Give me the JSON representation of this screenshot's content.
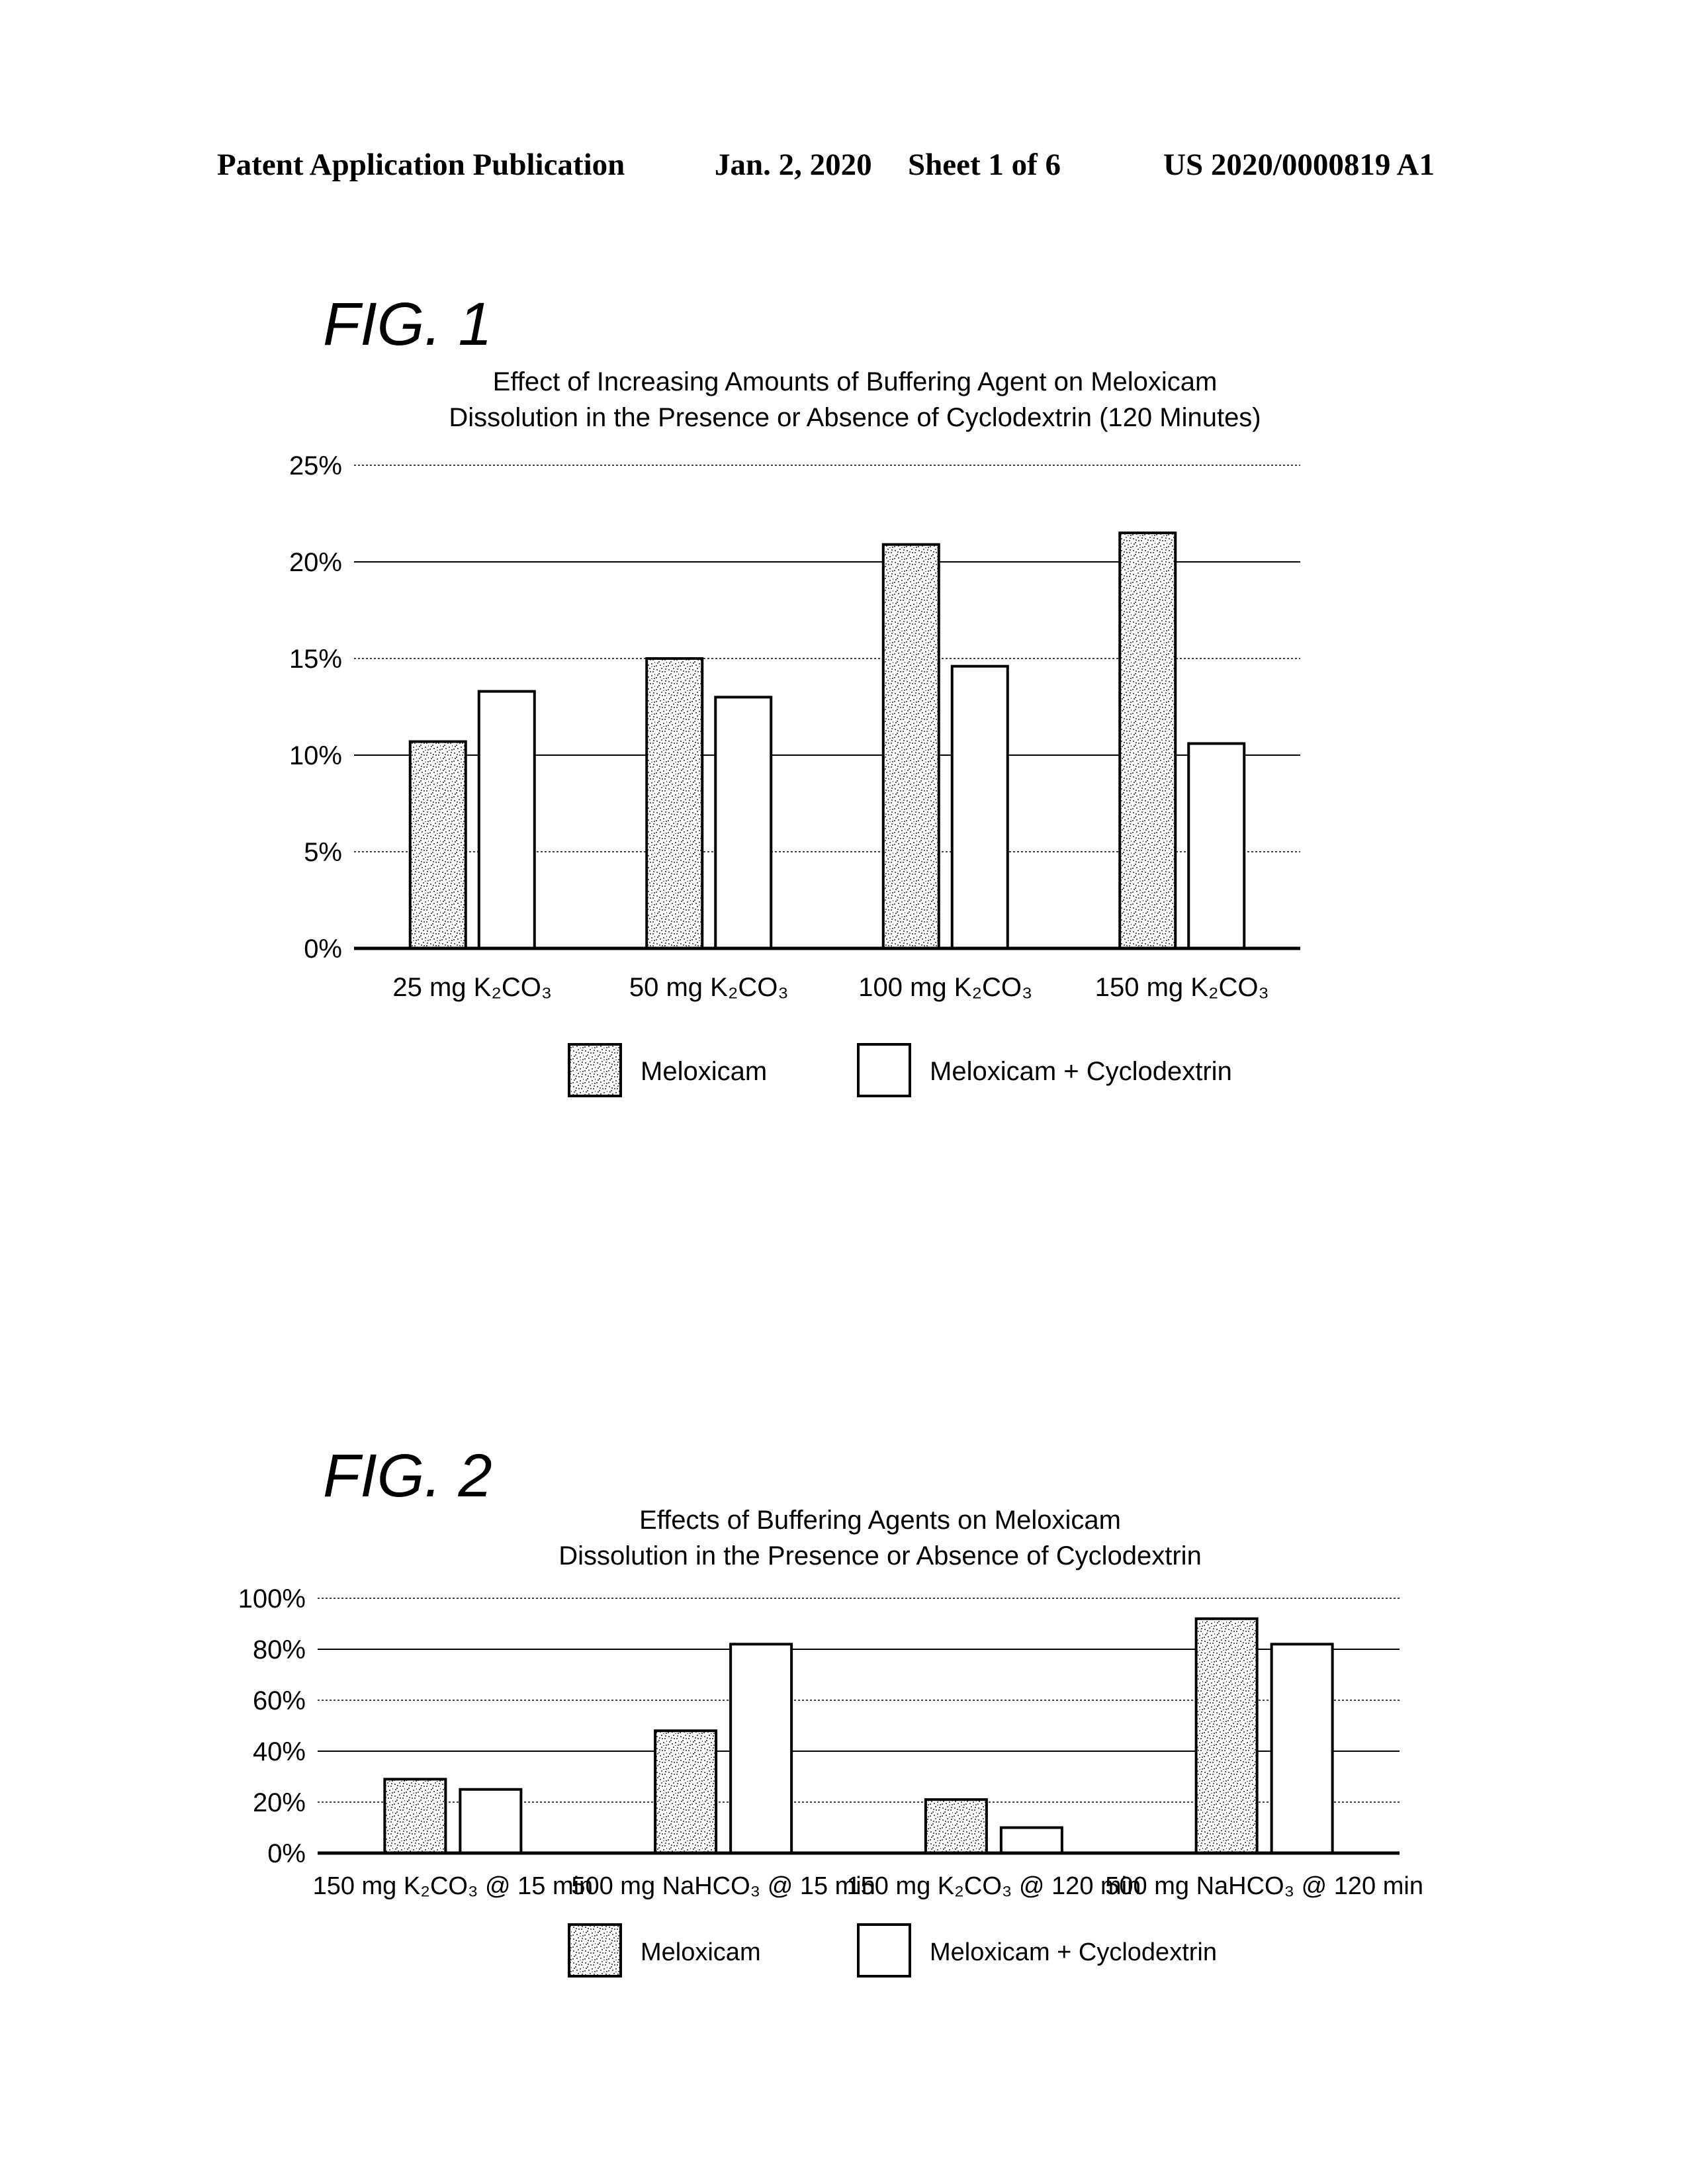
{
  "header": {
    "publication": "Patent Application Publication",
    "date": "Jan. 2, 2020",
    "sheet": "Sheet 1 of 6",
    "number": "US 2020/0000819 A1"
  },
  "figures": [
    {
      "label": "FIG. 1"
    },
    {
      "label": "FIG. 2"
    }
  ],
  "chart_data": [
    {
      "type": "bar",
      "title": "Effect of Increasing Amounts of Buffering Agent on Meloxicam",
      "subtitle": "Dissolution in the Presence or Absence of Cyclodextrin (120 Minutes)",
      "categories": [
        "25 mg K₂CO₃",
        "50 mg K₂CO₃",
        "100 mg K₂CO₃",
        "150 mg K₂CO₃"
      ],
      "series": [
        {
          "name": "Meloxicam",
          "values": [
            10.7,
            15.0,
            20.9,
            21.5
          ]
        },
        {
          "name": "Meloxicam + Cyclodextrin",
          "values": [
            13.3,
            13.0,
            14.6,
            10.6
          ]
        }
      ],
      "ylim": [
        0,
        25
      ],
      "yticks": [
        "0%",
        "5%",
        "10%",
        "15%",
        "20%",
        "25%"
      ],
      "xlabel": "",
      "ylabel": "",
      "grid": true,
      "legend": "bottom"
    },
    {
      "type": "bar",
      "title": "Effects of Buffering Agents on Meloxicam",
      "subtitle": "Dissolution in the Presence or Absence of Cyclodextrin",
      "categories": [
        "150 mg K₂CO₃ @ 15 min",
        "500 mg NaHCO₃ @ 15 min",
        "150 mg K₂CO₃ @ 120 min",
        "500 mg NaHCO₃ @ 120 min"
      ],
      "series": [
        {
          "name": "Meloxicam",
          "values": [
            29,
            48,
            21,
            92
          ]
        },
        {
          "name": "Meloxicam + Cyclodextrin",
          "values": [
            25,
            82,
            10,
            82
          ]
        }
      ],
      "ylim": [
        0,
        100
      ],
      "yticks": [
        "0%",
        "20%",
        "40%",
        "60%",
        "80%",
        "100%"
      ],
      "xlabel": "",
      "ylabel": "",
      "grid": true,
      "legend": "bottom"
    }
  ],
  "colors": {
    "stipple": "#5a5a5a",
    "axis": "#000000",
    "background": "#ffffff"
  }
}
